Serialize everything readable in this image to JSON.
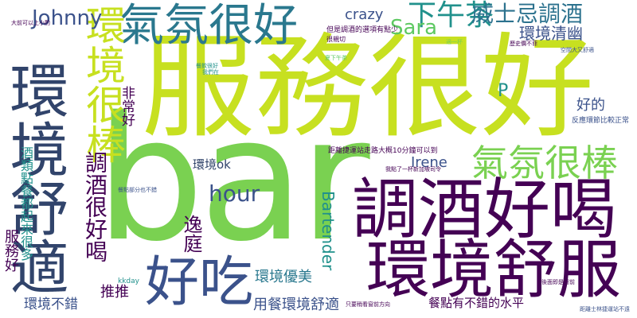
{
  "cloud": {
    "palette": [
      "#440154",
      "#3b528b",
      "#21918c",
      "#5ec962",
      "#fde725",
      "#c7e020",
      "#7ad151"
    ],
    "words": [
      {
        "id": "bar",
        "text": "bar",
        "color": "#7ad151"
      },
      {
        "id": "fuwu",
        "text": "服務很好",
        "color": "#c7e020"
      },
      {
        "id": "huanjing-shushi-v",
        "text": "環境舒適",
        "color": "#31446b"
      },
      {
        "id": "tiaojiu",
        "text": "調酒好喝",
        "color": "#440154"
      },
      {
        "id": "huanjing-shufu",
        "text": "環境舒服",
        "color": "#440154"
      },
      {
        "id": "qifen-henhao",
        "text": "氣氛很好",
        "color": "#2a788e"
      },
      {
        "id": "huanjing-henbang",
        "text": "環境很棒",
        "color": "#c7e020"
      },
      {
        "id": "haochi",
        "text": "好吃",
        "color": "#3b528b"
      },
      {
        "id": "xiawucha",
        "text": "下午茶",
        "color": "#21918c"
      },
      {
        "id": "qifen-henbang",
        "text": "氣氛很棒",
        "color": "#7ad151"
      },
      {
        "id": "johnny",
        "text": "Johnny",
        "color": "#3b528b"
      },
      {
        "id": "sara",
        "text": "Sara",
        "color": "#5ec962"
      },
      {
        "id": "crazy",
        "text": "crazy",
        "color": "#3b528b"
      },
      {
        "id": "weishiji",
        "text": "威士忌調酒",
        "color": "#2c728e"
      },
      {
        "id": "huanjing-qingyou",
        "text": "環境清幽",
        "color": "#3b528b"
      },
      {
        "id": "p",
        "text": "P",
        "color": "#21918c"
      },
      {
        "id": "haode",
        "text": "好的",
        "color": "#3b528b"
      },
      {
        "id": "hour",
        "text": "hour",
        "color": "#3b528b"
      },
      {
        "id": "irene",
        "text": "Irene",
        "color": "#3b528b"
      },
      {
        "id": "bartender",
        "text": "Bartender",
        "color": "#21918c"
      },
      {
        "id": "yiting",
        "text": "逸庭",
        "color": "#440154"
      },
      {
        "id": "feichang",
        "text": "非常好",
        "color": "#440154"
      },
      {
        "id": "tiaojiu-henhaohe",
        "text": "調酒很好喝",
        "color": "#440154"
      },
      {
        "id": "huanjing-ok",
        "text": "環境ok",
        "color": "#31446b"
      },
      {
        "id": "huanjing-youmei",
        "text": "環境優美",
        "color": "#2a788e"
      },
      {
        "id": "tuitui",
        "text": "推推",
        "color": "#440154"
      },
      {
        "id": "yongcan",
        "text": "用餐環境舒適",
        "color": "#3b528b"
      },
      {
        "id": "canidan",
        "text": "餐點有不錯的水平",
        "color": "#440154"
      },
      {
        "id": "huanjing-bucuo",
        "text": "環境不錯",
        "color": "#3b528b"
      },
      {
        "id": "fuwuhao",
        "text": "服務好",
        "color": "#440154"
      },
      {
        "id": "jiulei",
        "text": "酒類點餐都起來很多",
        "color": "#21918c"
      },
      {
        "id": "kkday",
        "text": "kkday",
        "color": "#21918c"
      },
      {
        "id": "danshi",
        "text": "但是調酒的選項有點少",
        "color": "#440154"
      },
      {
        "id": "henqinqie",
        "text": "很親切",
        "color": "#440154"
      },
      {
        "id": "juli-jieyun",
        "text": "距離捷運站走路大概10分鐘可以到",
        "color": "#440154"
      },
      {
        "id": "fanying",
        "text": "反應環節比較正常",
        "color": "#3b528b"
      },
      {
        "id": "kongjian",
        "text": "空間大又舒適",
        "color": "#3b528b"
      },
      {
        "id": "shiyi",
        "text": "適一杯",
        "color": "#7ad151"
      },
      {
        "id": "canyin-henhao",
        "text": "餐飲很好",
        "color": "#21918c"
      },
      {
        "id": "houmian",
        "text": "後面即是窗前",
        "color": "#440154"
      },
      {
        "id": "juli-jieyun-2",
        "text": "距離士林捷運站不遠",
        "color": "#3b528b"
      },
      {
        "id": "zhiyao",
        "text": "只要稍看窗前方向",
        "color": "#440154"
      },
      {
        "id": "womendian",
        "text": "我點了一杯新加坡司令",
        "color": "#440154"
      },
      {
        "id": "canshu",
        "text": "餐點部分也不錯",
        "color": "#3b528b"
      },
      {
        "id": "xiatiao",
        "text": "夏下午茶",
        "color": "#5ec962"
      },
      {
        "id": "lishi",
        "text": "歷史價不菲",
        "color": "#440154"
      },
      {
        "id": "women",
        "text": "我們在",
        "color": "#21918c"
      },
      {
        "id": "daqian",
        "text": "大前可以上小酌",
        "color": "#440154"
      }
    ]
  }
}
